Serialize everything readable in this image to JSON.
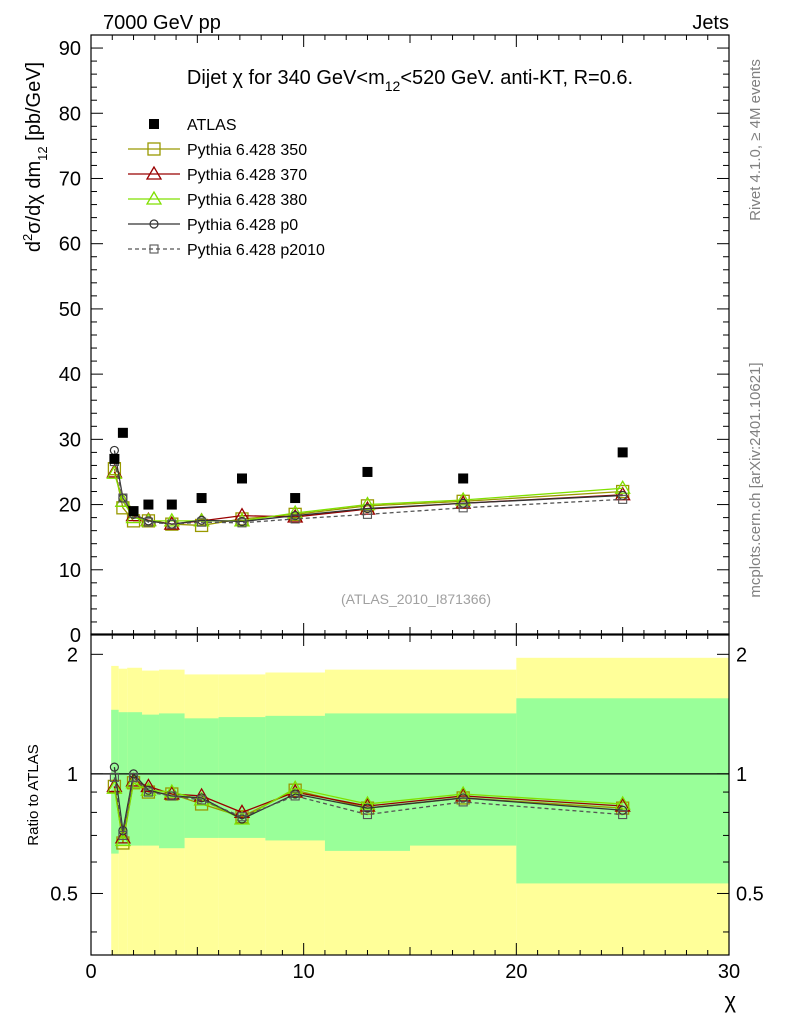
{
  "header": {
    "left": "7000 GeV pp",
    "right": "Jets",
    "title_main": "Dijet χ for 340 GeV<m",
    "title_sub": "12",
    "title_tail": "<520 GeV.  anti-KT, R=0.6.",
    "watermark": "(ATLAS_2010_I871366)"
  },
  "side_text": {
    "rivet": "Rivet 4.1.0, ≥ 4M events",
    "mcplots": "mcplots.cern.ch [arXiv:2401.10621]"
  },
  "colors": {
    "data": "#000000",
    "p350": "#999900",
    "p370": "#990000",
    "p380": "#80e000",
    "p0": "#333333",
    "p2010": "#555555",
    "band_outer": "#ffff99",
    "band_inner": "#99ff99"
  },
  "chart_data": [
    {
      "type": "line",
      "panel": "main",
      "title": "Dijet χ for 340 GeV<m12<520 GeV.  anti-KT, R=0.6.",
      "ylabel": "d²σ/dχ dm12 [pb/GeV]",
      "xlim": [
        0,
        30
      ],
      "ylim": [
        0,
        92
      ],
      "xticks": [
        0,
        10,
        20,
        30
      ],
      "xtick_labels": [
        "0",
        "10",
        "20",
        "30"
      ],
      "yticks": [
        0,
        10,
        20,
        30,
        40,
        50,
        60,
        70,
        80,
        90
      ],
      "ytick_labels": [
        "0",
        "10",
        "20",
        "30",
        "40",
        "50",
        "60",
        "70",
        "80",
        "90"
      ],
      "x": [
        1.1,
        1.5,
        2.0,
        2.7,
        3.8,
        5.2,
        7.1,
        9.6,
        13.0,
        17.5,
        25.0
      ],
      "data": {
        "name": "ATLAS",
        "values": [
          27,
          31,
          19,
          20,
          20,
          21,
          24,
          21,
          25,
          24,
          28
        ]
      },
      "series": [
        {
          "name": "Pythia 6.428 350",
          "key": "p350",
          "values": [
            25.5,
            19.5,
            17.5,
            17.5,
            17.0,
            16.8,
            17.8,
            18.5,
            19.8,
            20.5,
            22.0
          ]
        },
        {
          "name": "Pythia 6.428 370",
          "key": "p370",
          "values": [
            25.0,
            20.5,
            18.3,
            17.6,
            17.0,
            17.5,
            18.3,
            18.1,
            19.3,
            20.2,
            21.5
          ]
        },
        {
          "name": "Pythia 6.428 380",
          "key": "p380",
          "values": [
            24.8,
            20.5,
            18.0,
            17.5,
            17.5,
            17.5,
            17.5,
            18.7,
            20.0,
            20.7,
            22.5
          ]
        },
        {
          "name": "Pythia 6.428 p0",
          "key": "p0",
          "values": [
            28.3,
            21.0,
            18.5,
            17.5,
            17.0,
            17.6,
            17.4,
            18.3,
            19.4,
            20.2,
            21.4
          ]
        },
        {
          "name": "Pythia 6.428 p2010",
          "key": "p2010",
          "values": [
            26.6,
            21.0,
            18.7,
            17.3,
            17.0,
            17.3,
            17.2,
            17.8,
            18.5,
            19.5,
            20.8
          ]
        }
      ],
      "legend": [
        "ATLAS",
        "Pythia 6.428 350",
        "Pythia 6.428 370",
        "Pythia 6.428 380",
        "Pythia 6.428 p0",
        "Pythia 6.428 p2010"
      ]
    },
    {
      "type": "line",
      "panel": "ratio",
      "ylabel": "Ratio to ATLAS",
      "xlabel": "χ",
      "xlim": [
        0,
        30
      ],
      "ylim": [
        0.35,
        2.25
      ],
      "xticks": [
        0,
        10,
        20,
        30
      ],
      "xtick_labels": [
        "0",
        "10",
        "20",
        "30"
      ],
      "yticks": [
        0.5,
        1,
        2
      ],
      "ytick_labels": [
        "0.5",
        "1",
        "2"
      ],
      "x": [
        1.1,
        1.5,
        2.0,
        2.7,
        3.8,
        5.2,
        7.1,
        9.6,
        13.0,
        17.5,
        25.0
      ],
      "bins": [
        {
          "lo": 0.95,
          "hi": 1.3,
          "in_lo": 0.63,
          "in_hi": 1.45,
          "out_lo": 0.35,
          "out_hi": 1.87
        },
        {
          "lo": 1.3,
          "hi": 1.7,
          "in_lo": 0.66,
          "in_hi": 1.43,
          "out_lo": 0.35,
          "out_hi": 1.84
        },
        {
          "lo": 1.7,
          "hi": 2.4,
          "in_lo": 0.66,
          "in_hi": 1.43,
          "out_lo": 0.35,
          "out_hi": 1.85
        },
        {
          "lo": 2.4,
          "hi": 3.2,
          "in_lo": 0.66,
          "in_hi": 1.41,
          "out_lo": 0.35,
          "out_hi": 1.82
        },
        {
          "lo": 3.2,
          "hi": 4.4,
          "in_lo": 0.65,
          "in_hi": 1.42,
          "out_lo": 0.35,
          "out_hi": 1.83
        },
        {
          "lo": 4.4,
          "hi": 6.0,
          "in_lo": 0.69,
          "in_hi": 1.38,
          "out_lo": 0.35,
          "out_hi": 1.78
        },
        {
          "lo": 6.0,
          "hi": 8.2,
          "in_lo": 0.69,
          "in_hi": 1.39,
          "out_lo": 0.35,
          "out_hi": 1.78
        },
        {
          "lo": 8.2,
          "hi": 11.0,
          "in_lo": 0.68,
          "in_hi": 1.4,
          "out_lo": 0.35,
          "out_hi": 1.8
        },
        {
          "lo": 11.0,
          "hi": 15.0,
          "in_lo": 0.64,
          "in_hi": 1.42,
          "out_lo": 0.35,
          "out_hi": 1.83
        },
        {
          "lo": 15.0,
          "hi": 20.0,
          "in_lo": 0.66,
          "in_hi": 1.42,
          "out_lo": 0.35,
          "out_hi": 1.83
        },
        {
          "lo": 20.0,
          "hi": 30.0,
          "in_lo": 0.53,
          "in_hi": 1.55,
          "out_lo": 0.35,
          "out_hi": 1.96
        }
      ],
      "series": [
        {
          "name": "Pythia 6.428 350",
          "key": "p350",
          "values": [
            0.93,
            0.67,
            0.95,
            0.9,
            0.89,
            0.84,
            0.78,
            0.91,
            0.82,
            0.87,
            0.82
          ]
        },
        {
          "name": "Pythia 6.428 370",
          "key": "p370",
          "values": [
            0.93,
            0.69,
            0.96,
            0.93,
            0.89,
            0.88,
            0.8,
            0.9,
            0.83,
            0.88,
            0.83
          ]
        },
        {
          "name": "Pythia 6.428 380",
          "key": "p380",
          "values": [
            0.92,
            0.68,
            0.95,
            0.91,
            0.9,
            0.86,
            0.77,
            0.92,
            0.84,
            0.89,
            0.84
          ]
        },
        {
          "name": "Pythia 6.428 p0",
          "key": "p0",
          "values": [
            1.04,
            0.72,
            1.0,
            0.91,
            0.88,
            0.87,
            0.77,
            0.89,
            0.82,
            0.87,
            0.81
          ]
        },
        {
          "name": "Pythia 6.428 p2010",
          "key": "p2010",
          "values": [
            0.98,
            0.7,
            0.98,
            0.9,
            0.88,
            0.86,
            0.78,
            0.88,
            0.79,
            0.85,
            0.79
          ]
        }
      ]
    }
  ]
}
